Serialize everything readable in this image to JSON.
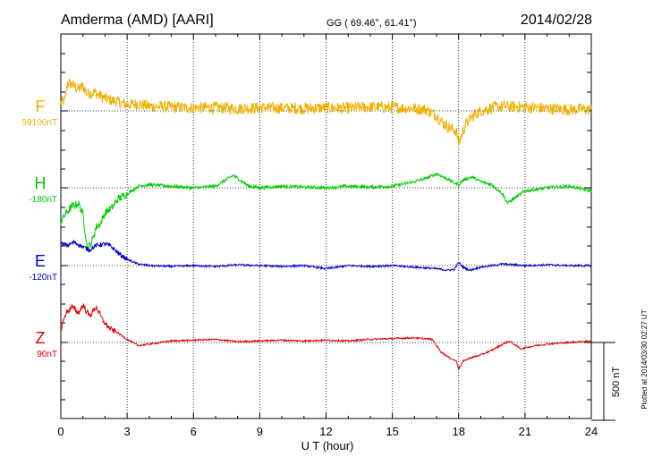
{
  "chart_data": {
    "type": "line",
    "title": "Amderma (AMD)  [AARI]",
    "coords": "GG ( 69.46°,  61.41°)",
    "date": "2014/02/28",
    "xlabel": "U T (hour)",
    "xlim": [
      0,
      24
    ],
    "xticks": [
      0,
      3,
      6,
      9,
      12,
      15,
      18,
      21,
      24
    ],
    "grid": true,
    "scale_bar": {
      "label": "500 nT",
      "value_nT": 500
    },
    "plotted_note": "Plotted at 2014/03/30 02:27 UT",
    "series": [
      {
        "name": "F",
        "baseline_label": "59100nT",
        "color": "#f0b000",
        "baseline_nT": 59100,
        "x": [
          0,
          0.2,
          0.3,
          0.5,
          0.8,
          1.0,
          1.2,
          1.5,
          2.0,
          2.5,
          3.0,
          3.5,
          4,
          5,
          6,
          7,
          8,
          9,
          10,
          11,
          12,
          13,
          14,
          15,
          16,
          16.5,
          17,
          17.3,
          17.6,
          17.9,
          18.0,
          18.1,
          18.3,
          18.6,
          19,
          19.5,
          20,
          21,
          22,
          23,
          24
        ],
        "values": [
          50,
          70,
          180,
          170,
          140,
          160,
          110,
          120,
          80,
          60,
          40,
          45,
          30,
          25,
          20,
          22,
          15,
          20,
          18,
          16,
          20,
          18,
          25,
          22,
          15,
          10,
          -30,
          -80,
          -110,
          -130,
          -210,
          -170,
          -90,
          -40,
          0,
          20,
          30,
          25,
          15,
          10,
          10
        ]
      },
      {
        "name": "H",
        "baseline_label": "-180nT",
        "color": "#00cc00",
        "baseline_nT": -180,
        "x": [
          0,
          0.2,
          0.5,
          0.8,
          1.0,
          1.2,
          1.4,
          1.6,
          1.8,
          2.0,
          2.3,
          2.6,
          3.0,
          3.5,
          4,
          5,
          6,
          7,
          7.8,
          8.5,
          9,
          10,
          11,
          12,
          13,
          14,
          15,
          16,
          16.5,
          17,
          17.3,
          17.6,
          17.8,
          18.0,
          18.2,
          18.6,
          19,
          19.5,
          20,
          20.2,
          20.5,
          21,
          21.5,
          22,
          23,
          24
        ],
        "values": [
          -220,
          -170,
          -120,
          -100,
          -170,
          -390,
          -350,
          -250,
          -230,
          -160,
          -130,
          -70,
          -40,
          10,
          20,
          10,
          0,
          10,
          80,
          10,
          0,
          10,
          5,
          0,
          10,
          5,
          10,
          40,
          60,
          90,
          70,
          50,
          30,
          20,
          50,
          70,
          40,
          20,
          -40,
          -100,
          -70,
          -20,
          -10,
          0,
          10,
          -20
        ]
      },
      {
        "name": "E",
        "baseline_label": "-120nT",
        "color": "#0000cc",
        "baseline_nT": -120,
        "x": [
          0,
          0.3,
          0.6,
          1.0,
          1.3,
          1.6,
          2.0,
          2.3,
          2.6,
          3.0,
          3.5,
          4,
          5,
          6,
          7,
          8,
          9,
          10,
          11,
          12,
          13,
          14,
          15,
          16,
          17,
          17.5,
          17.8,
          18.0,
          18.2,
          18.5,
          19,
          20,
          21,
          22,
          23,
          24
        ],
        "values": [
          140,
          130,
          150,
          120,
          100,
          130,
          140,
          120,
          80,
          40,
          10,
          0,
          -5,
          0,
          -5,
          5,
          0,
          -5,
          0,
          -20,
          0,
          -5,
          0,
          -10,
          -20,
          -30,
          -25,
          20,
          -10,
          -30,
          -10,
          10,
          0,
          5,
          0,
          0
        ]
      },
      {
        "name": "Z",
        "baseline_label": "90nT",
        "color": "#dd0000",
        "baseline_nT": 90,
        "x": [
          0,
          0.2,
          0.5,
          0.8,
          1.0,
          1.3,
          1.6,
          1.9,
          2.2,
          2.6,
          3.0,
          3.5,
          4,
          5,
          6,
          7,
          8,
          9,
          10,
          11,
          12,
          13,
          14,
          15,
          16,
          16.8,
          17.2,
          17.6,
          17.9,
          18.0,
          18.2,
          18.5,
          19,
          19.5,
          20,
          20.3,
          20.8,
          21.5,
          22,
          23,
          24
        ],
        "values": [
          80,
          180,
          230,
          190,
          240,
          170,
          230,
          140,
          90,
          60,
          20,
          -20,
          -10,
          10,
          15,
          20,
          5,
          10,
          15,
          10,
          15,
          10,
          20,
          25,
          30,
          20,
          -60,
          -100,
          -120,
          -170,
          -120,
          -100,
          -80,
          -50,
          -10,
          10,
          -40,
          -20,
          -10,
          0,
          10
        ]
      }
    ]
  }
}
